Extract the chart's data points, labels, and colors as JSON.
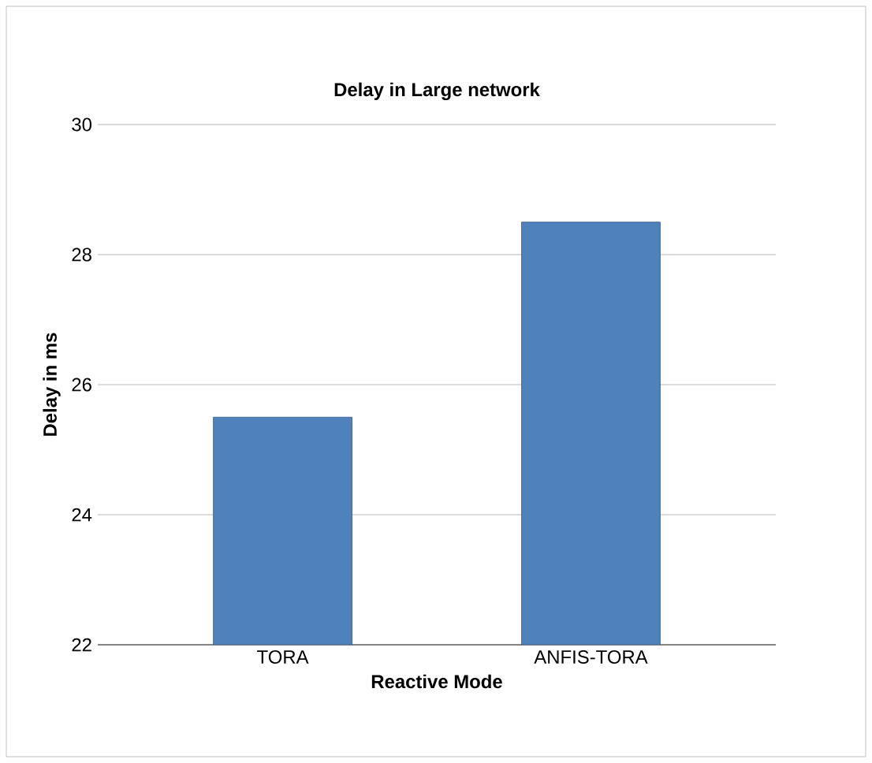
{
  "chart_data": {
    "type": "bar",
    "title": "Delay in Large network",
    "xlabel": "Reactive Mode",
    "ylabel": "Delay in ms",
    "categories": [
      "TORA",
      "ANFIS-TORA"
    ],
    "values": [
      25.5,
      28.5
    ],
    "color": "#4f81bd",
    "ylim": [
      22,
      30
    ],
    "yticks": [
      22,
      24,
      26,
      28,
      30
    ],
    "grid": "y"
  }
}
